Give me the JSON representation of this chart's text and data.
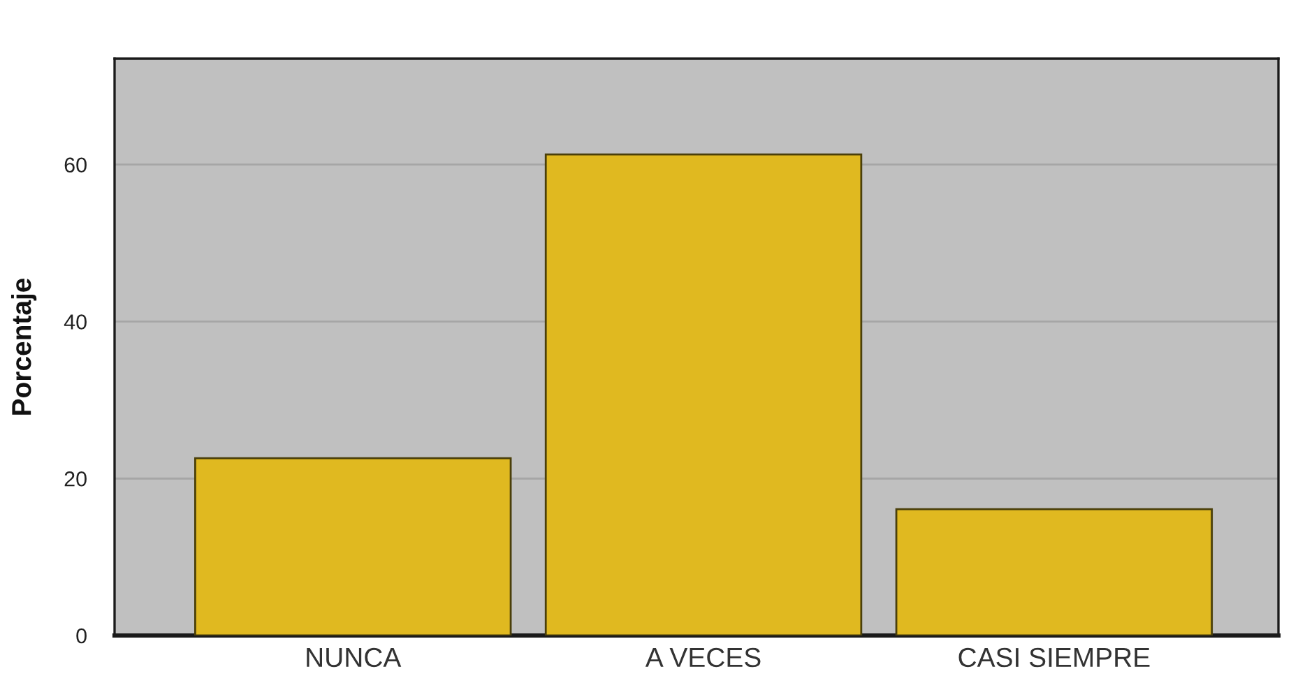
{
  "chart_data": {
    "type": "bar",
    "ylabel": "Porcentaje",
    "categories": [
      "NUNCA",
      "A VECES",
      "CASI SIEMPRE"
    ],
    "values": [
      22.6,
      61.3,
      16.1
    ],
    "color": "#e0b920",
    "ylim": [
      0,
      73.5
    ],
    "yticks": [
      0,
      20,
      40,
      60
    ],
    "grid": "y"
  }
}
